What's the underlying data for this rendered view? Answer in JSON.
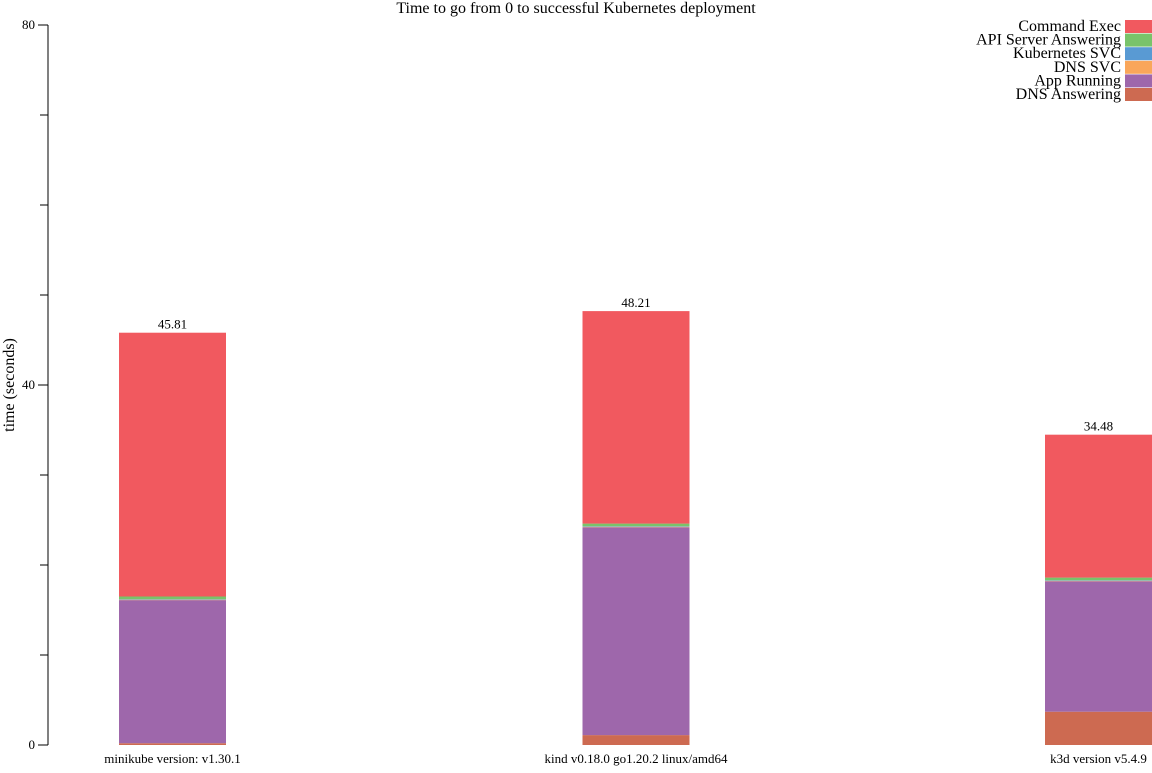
{
  "chart_data": {
    "type": "bar",
    "stacked": true,
    "title": "Time to go from 0 to successful Kubernetes deployment",
    "ylabel": "time (seconds)",
    "xlabel": "",
    "ylim": [
      0,
      80
    ],
    "yticks": [
      "0",
      "40",
      "80"
    ],
    "grid": false,
    "legend_position": "top-right",
    "categories": [
      "minikube version: v1.30.1",
      "kind v0.18.0 go1.20.2 linux/amd64",
      "k3d version v5.4.9"
    ],
    "totals": [
      "45.81",
      "48.21",
      "34.48"
    ],
    "series": [
      {
        "name": "DNS Answering",
        "color": "#cd6a51",
        "values": [
          0.2,
          1.1,
          3.7
        ]
      },
      {
        "name": "App Running",
        "color": "#9e67ab",
        "values": [
          15.9,
          23.1,
          14.5
        ]
      },
      {
        "name": "DNS SVC",
        "color": "#f9a65a",
        "values": [
          0.05,
          0.05,
          0.05
        ]
      },
      {
        "name": "Kubernetes SVC",
        "color": "#599ad3",
        "values": [
          0.05,
          0.05,
          0.05
        ]
      },
      {
        "name": "API Server Answering",
        "color": "#79c36a",
        "values": [
          0.3,
          0.3,
          0.3
        ]
      },
      {
        "name": "Command Exec",
        "color": "#f1595f",
        "values": [
          29.31,
          23.61,
          15.88
        ]
      }
    ],
    "legend_order": [
      "Command Exec",
      "API Server Answering",
      "Kubernetes SVC",
      "DNS SVC",
      "App Running",
      "DNS Answering"
    ]
  }
}
